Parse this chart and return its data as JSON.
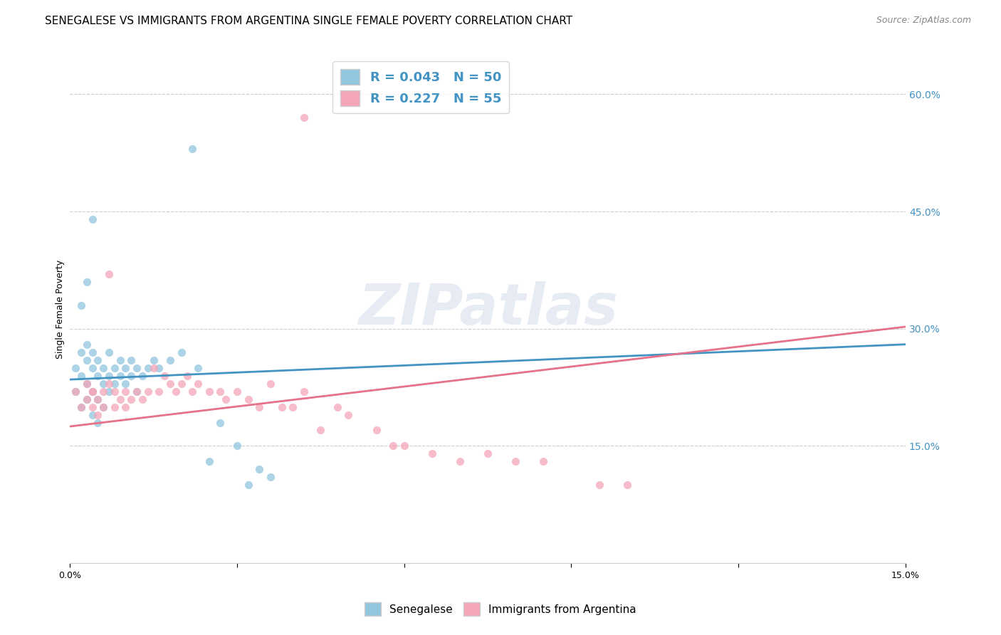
{
  "title": "SENEGALESE VS IMMIGRANTS FROM ARGENTINA SINGLE FEMALE POVERTY CORRELATION CHART",
  "source": "Source: ZipAtlas.com",
  "ylabel": "Single Female Poverty",
  "x_min": 0.0,
  "x_max": 0.15,
  "y_min": 0.0,
  "y_max": 0.65,
  "y_ticks_right": [
    0.15,
    0.3,
    0.45,
    0.6
  ],
  "y_tick_labels_right": [
    "15.0%",
    "30.0%",
    "45.0%",
    "60.0%"
  ],
  "legend_r1": "0.043",
  "legend_n1": "50",
  "legend_r2": "0.227",
  "legend_n2": "55",
  "legend_label1": "Senegalese",
  "legend_label2": "Immigrants from Argentina",
  "color_blue": "#92c5de",
  "color_pink": "#f4a6b8",
  "color_blue_line": "#4393c3",
  "color_pink_line": "#e8728a",
  "color_dashed": "#92c5de",
  "watermark": "ZIPatlas",
  "title_fontsize": 11,
  "axis_fontsize": 9,
  "legend_fontsize": 13,
  "source_fontsize": 9,
  "senegalese_x": [
    0.001,
    0.001,
    0.002,
    0.002,
    0.002,
    0.003,
    0.003,
    0.003,
    0.003,
    0.004,
    0.004,
    0.004,
    0.004,
    0.005,
    0.005,
    0.005,
    0.005,
    0.006,
    0.006,
    0.006,
    0.007,
    0.007,
    0.007,
    0.008,
    0.008,
    0.009,
    0.009,
    0.01,
    0.01,
    0.011,
    0.011,
    0.012,
    0.012,
    0.013,
    0.014,
    0.015,
    0.016,
    0.018,
    0.02,
    0.022,
    0.023,
    0.025,
    0.027,
    0.03,
    0.032,
    0.034,
    0.036,
    0.004,
    0.003,
    0.002
  ],
  "senegalese_y": [
    0.25,
    0.22,
    0.27,
    0.24,
    0.2,
    0.28,
    0.26,
    0.23,
    0.21,
    0.27,
    0.25,
    0.22,
    0.19,
    0.26,
    0.24,
    0.21,
    0.18,
    0.25,
    0.23,
    0.2,
    0.27,
    0.24,
    0.22,
    0.25,
    0.23,
    0.26,
    0.24,
    0.25,
    0.23,
    0.26,
    0.24,
    0.25,
    0.22,
    0.24,
    0.25,
    0.26,
    0.25,
    0.26,
    0.27,
    0.53,
    0.25,
    0.13,
    0.18,
    0.15,
    0.1,
    0.12,
    0.11,
    0.44,
    0.36,
    0.33
  ],
  "argentina_x": [
    0.001,
    0.002,
    0.003,
    0.003,
    0.004,
    0.004,
    0.005,
    0.005,
    0.006,
    0.006,
    0.007,
    0.007,
    0.008,
    0.008,
    0.009,
    0.01,
    0.01,
    0.011,
    0.012,
    0.013,
    0.014,
    0.015,
    0.016,
    0.017,
    0.018,
    0.019,
    0.02,
    0.021,
    0.022,
    0.023,
    0.025,
    0.027,
    0.028,
    0.03,
    0.032,
    0.034,
    0.036,
    0.038,
    0.04,
    0.042,
    0.045,
    0.048,
    0.05,
    0.055,
    0.058,
    0.06,
    0.065,
    0.07,
    0.075,
    0.08,
    0.085,
    0.095,
    0.1,
    0.042,
    0.004
  ],
  "argentina_y": [
    0.22,
    0.2,
    0.23,
    0.21,
    0.22,
    0.2,
    0.21,
    0.19,
    0.22,
    0.2,
    0.37,
    0.23,
    0.22,
    0.2,
    0.21,
    0.22,
    0.2,
    0.21,
    0.22,
    0.21,
    0.22,
    0.25,
    0.22,
    0.24,
    0.23,
    0.22,
    0.23,
    0.24,
    0.22,
    0.23,
    0.22,
    0.22,
    0.21,
    0.22,
    0.21,
    0.2,
    0.23,
    0.2,
    0.2,
    0.22,
    0.17,
    0.2,
    0.19,
    0.17,
    0.15,
    0.15,
    0.14,
    0.13,
    0.14,
    0.13,
    0.13,
    0.1,
    0.1,
    0.57,
    0.22
  ]
}
